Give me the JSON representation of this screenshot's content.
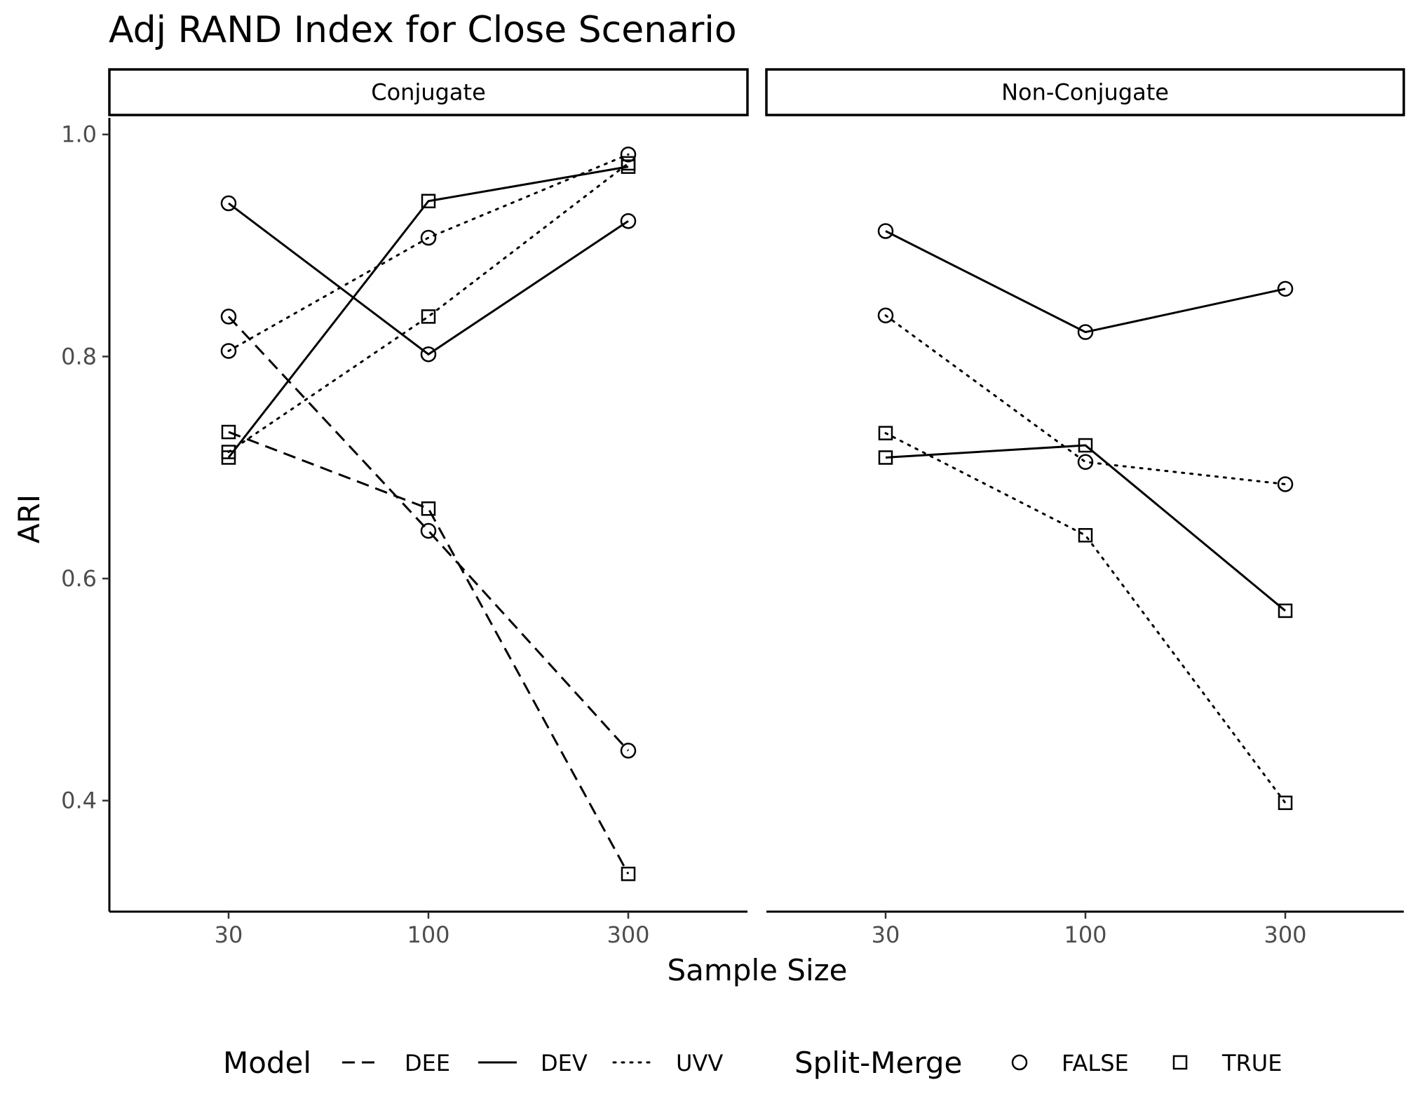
{
  "chart_data": {
    "type": "line",
    "title": "Adj RAND Index for Close Scenario",
    "xlabel": "Sample Size",
    "ylabel": "ARI",
    "x_categories": [
      "30",
      "100",
      "300"
    ],
    "y_ticks": [
      0.4,
      0.6,
      0.8,
      1.0
    ],
    "y_tick_labels": [
      "0.4",
      "0.6",
      "0.8",
      "1.0"
    ],
    "ylim": [
      0.3,
      1.015
    ],
    "grid": false,
    "legend_position": "bottom",
    "legend": {
      "model_title": "Model",
      "model_items": [
        {
          "label": "DEE",
          "linetype": "dashed"
        },
        {
          "label": "DEV",
          "linetype": "solid"
        },
        {
          "label": "UVV",
          "linetype": "dotted"
        }
      ],
      "split_title": "Split-Merge",
      "split_items": [
        {
          "label": "FALSE",
          "shape": "circle"
        },
        {
          "label": "TRUE",
          "shape": "square"
        }
      ]
    },
    "panels": [
      {
        "label": "Conjugate",
        "series": [
          {
            "model": "DEE",
            "split_merge": "FALSE",
            "values": [
              0.836,
              0.643,
              0.445
            ]
          },
          {
            "model": "DEE",
            "split_merge": "TRUE",
            "values": [
              0.732,
              0.663,
              0.334
            ]
          },
          {
            "model": "DEV",
            "split_merge": "FALSE",
            "values": [
              0.938,
              0.802,
              0.922
            ]
          },
          {
            "model": "DEV",
            "split_merge": "TRUE",
            "values": [
              0.709,
              0.94,
              0.971
            ]
          },
          {
            "model": "UVV",
            "split_merge": "FALSE",
            "values": [
              0.805,
              0.907,
              0.982
            ]
          },
          {
            "model": "UVV",
            "split_merge": "TRUE",
            "values": [
              0.714,
              0.836,
              0.974
            ]
          }
        ]
      },
      {
        "label": "Non-Conjugate",
        "series": [
          {
            "model": "DEV",
            "split_merge": "FALSE",
            "values": [
              0.913,
              0.822,
              0.861
            ]
          },
          {
            "model": "DEV",
            "split_merge": "TRUE",
            "values": [
              0.709,
              0.72,
              0.571
            ]
          },
          {
            "model": "UVV",
            "split_merge": "FALSE",
            "values": [
              0.837,
              0.705,
              0.685
            ]
          },
          {
            "model": "UVV",
            "split_merge": "TRUE",
            "values": [
              0.731,
              0.639,
              0.398
            ]
          }
        ]
      }
    ]
  }
}
